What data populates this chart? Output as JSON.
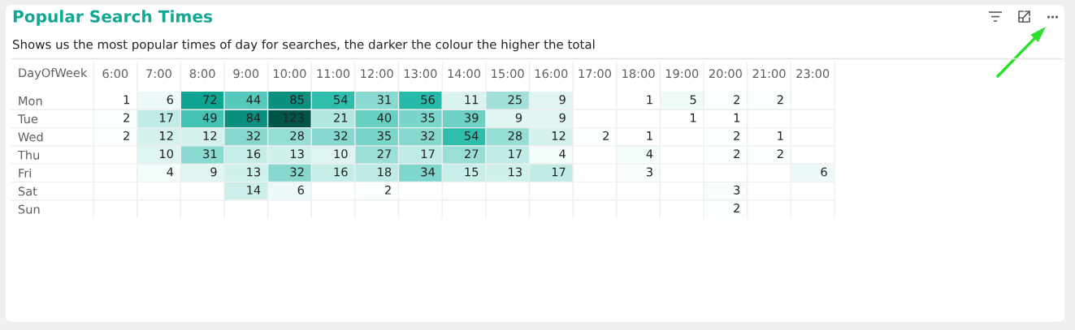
{
  "chart_data": {
    "type": "heatmap",
    "title": "Popular Search Times",
    "subtitle": "Shows us the most popular times of day for searches, the darker the colour the higher the total",
    "ylabel": "DayOfWeek",
    "categories": [
      "6:00",
      "7:00",
      "8:00",
      "9:00",
      "10:00",
      "11:00",
      "12:00",
      "13:00",
      "14:00",
      "15:00",
      "16:00",
      "17:00",
      "18:00",
      "19:00",
      "20:00",
      "21:00",
      "23:00"
    ],
    "y_categories": [
      "Mon",
      "Tue",
      "Wed",
      "Thu",
      "Fri",
      "Sat",
      "Sun"
    ],
    "cells": [
      [
        1,
        6,
        72,
        44,
        85,
        54,
        31,
        56,
        11,
        25,
        9,
        null,
        1,
        5,
        2,
        2,
        null
      ],
      [
        2,
        17,
        49,
        84,
        123,
        21,
        40,
        35,
        39,
        9,
        9,
        null,
        null,
        1,
        1,
        null,
        null
      ],
      [
        2,
        12,
        12,
        32,
        28,
        32,
        35,
        32,
        54,
        28,
        12,
        2,
        1,
        null,
        2,
        1,
        null
      ],
      [
        null,
        10,
        31,
        16,
        13,
        10,
        27,
        17,
        27,
        17,
        4,
        null,
        4,
        null,
        2,
        2,
        null
      ],
      [
        null,
        4,
        9,
        13,
        32,
        16,
        18,
        34,
        15,
        13,
        17,
        null,
        3,
        null,
        null,
        null,
        6
      ],
      [
        null,
        null,
        null,
        14,
        6,
        null,
        2,
        null,
        null,
        null,
        null,
        null,
        null,
        null,
        3,
        null,
        null
      ],
      [
        null,
        null,
        null,
        null,
        null,
        null,
        null,
        null,
        null,
        null,
        null,
        null,
        null,
        null,
        2,
        null,
        null
      ]
    ],
    "colors": [
      "#ffffff",
      "#11b3a0",
      "#005448"
    ],
    "data_labels": true,
    "grid": true
  }
}
